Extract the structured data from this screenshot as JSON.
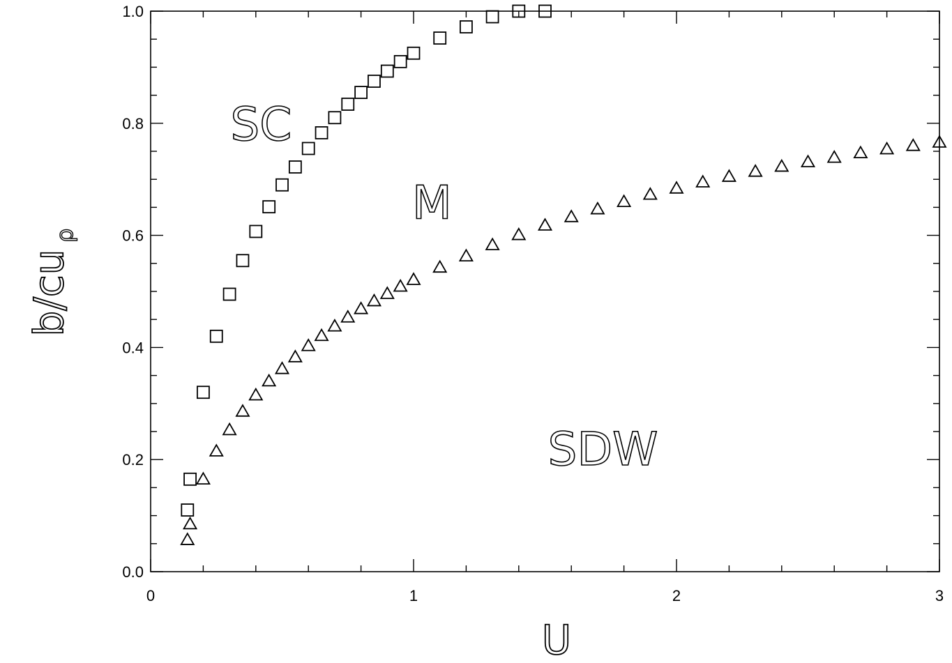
{
  "chart_data": {
    "type": "scatter",
    "xlabel": "U",
    "ylabel_main": "b/cu",
    "ylabel_sub": "ρ",
    "xlim": [
      0,
      3
    ],
    "ylim": [
      0,
      1.0
    ],
    "x_ticks": [
      0,
      1,
      2,
      3
    ],
    "x_tick_labels": [
      "0",
      "1",
      "2",
      "3"
    ],
    "y_ticks": [
      0,
      0.2,
      0.4,
      0.6,
      0.8,
      1.0
    ],
    "y_tick_labels": [
      "0.0",
      "0.2",
      "0.4",
      "0.6",
      "0.8",
      "1.0"
    ],
    "grid": false,
    "annotations": [
      {
        "text": "SC",
        "x": 0.42,
        "y": 0.8
      },
      {
        "text": "M",
        "x": 1.07,
        "y": 0.66
      },
      {
        "text": "SDW",
        "x": 1.72,
        "y": 0.22
      }
    ],
    "series": [
      {
        "marker": "square",
        "points": [
          [
            0.14,
            0.11
          ],
          [
            0.15,
            0.165
          ],
          [
            0.2,
            0.32
          ],
          [
            0.25,
            0.42
          ],
          [
            0.3,
            0.495
          ],
          [
            0.35,
            0.555
          ],
          [
            0.4,
            0.607
          ],
          [
            0.45,
            0.651
          ],
          [
            0.5,
            0.69
          ],
          [
            0.55,
            0.722
          ],
          [
            0.6,
            0.755
          ],
          [
            0.65,
            0.783
          ],
          [
            0.7,
            0.81
          ],
          [
            0.75,
            0.834
          ],
          [
            0.8,
            0.855
          ],
          [
            0.85,
            0.875
          ],
          [
            0.9,
            0.893
          ],
          [
            0.95,
            0.91
          ],
          [
            1.0,
            0.925
          ],
          [
            1.1,
            0.952
          ],
          [
            1.2,
            0.972
          ],
          [
            1.3,
            0.99
          ],
          [
            1.4,
            1.0
          ],
          [
            1.5,
            1.0
          ]
        ]
      },
      {
        "marker": "triangle",
        "points": [
          [
            0.14,
            0.057
          ],
          [
            0.15,
            0.085
          ],
          [
            0.2,
            0.165
          ],
          [
            0.25,
            0.215
          ],
          [
            0.3,
            0.253
          ],
          [
            0.35,
            0.286
          ],
          [
            0.4,
            0.315
          ],
          [
            0.45,
            0.34
          ],
          [
            0.5,
            0.362
          ],
          [
            0.55,
            0.383
          ],
          [
            0.6,
            0.403
          ],
          [
            0.65,
            0.421
          ],
          [
            0.7,
            0.438
          ],
          [
            0.75,
            0.454
          ],
          [
            0.8,
            0.469
          ],
          [
            0.85,
            0.483
          ],
          [
            0.9,
            0.496
          ],
          [
            0.95,
            0.509
          ],
          [
            1.0,
            0.521
          ],
          [
            1.1,
            0.543
          ],
          [
            1.2,
            0.563
          ],
          [
            1.3,
            0.583
          ],
          [
            1.4,
            0.601
          ],
          [
            1.5,
            0.618
          ],
          [
            1.6,
            0.633
          ],
          [
            1.7,
            0.647
          ],
          [
            1.8,
            0.66
          ],
          [
            1.9,
            0.673
          ],
          [
            2.0,
            0.684
          ],
          [
            2.1,
            0.695
          ],
          [
            2.2,
            0.705
          ],
          [
            2.3,
            0.714
          ],
          [
            2.4,
            0.723
          ],
          [
            2.5,
            0.731
          ],
          [
            2.6,
            0.739
          ],
          [
            2.7,
            0.747
          ],
          [
            2.8,
            0.754
          ],
          [
            2.9,
            0.76
          ],
          [
            3.0,
            0.766
          ]
        ]
      }
    ]
  }
}
